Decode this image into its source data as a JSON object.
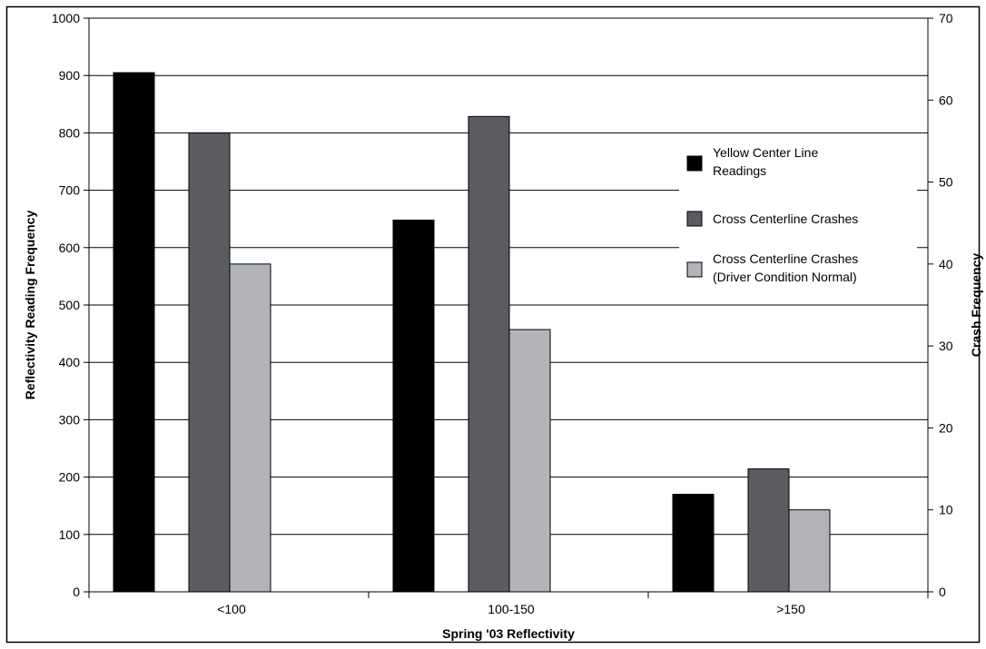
{
  "chart_data": {
    "type": "bar",
    "categories": [
      "<100",
      "100-150",
      ">150"
    ],
    "series": [
      {
        "name": "Yellow Center Line Readings",
        "axis": "left",
        "values": [
          905,
          648,
          170
        ],
        "color": "#000000"
      },
      {
        "name": "Cross Centerline Crashes",
        "axis": "right",
        "values": [
          56,
          58,
          15
        ],
        "color": "#5a5c60"
      },
      {
        "name": "Cross Centerline Crashes (Driver Condition Normal)",
        "axis": "right",
        "values": [
          40,
          32,
          10
        ],
        "color": "#b2b4b7"
      }
    ],
    "legend_lines": [
      [
        "Yellow Center Line",
        "Readings"
      ],
      [
        "Cross Centerline Crashes"
      ],
      [
        "Cross Centerline Crashes",
        "(Driver Condition Normal)"
      ]
    ],
    "xlabel": "Spring '03 Reflectivity",
    "ylabel": "Reflectivity Reading Frequency",
    "y2label": "Crash Frequency",
    "ylim": [
      0,
      1000
    ],
    "y2lim": [
      0,
      70
    ],
    "yticks": [
      0,
      100,
      200,
      300,
      400,
      500,
      600,
      700,
      800,
      900,
      1000
    ],
    "y2ticks": [
      0,
      10,
      20,
      30,
      40,
      50,
      60,
      70
    ],
    "grid": true,
    "legend_position": "right, inside plot"
  }
}
